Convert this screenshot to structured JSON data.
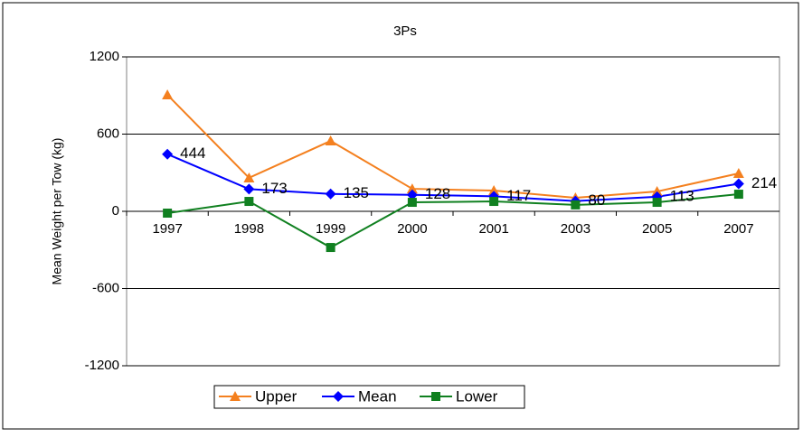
{
  "chart_data": {
    "type": "line",
    "title": "3Ps",
    "y_label": "Mean Weight per Tow (kg)",
    "categories": [
      "1997",
      "1998",
      "1999",
      "2000",
      "2001",
      "2003",
      "2005",
      "2007"
    ],
    "series": [
      {
        "name": "Upper",
        "color": "#f4801f",
        "marker": "triangle",
        "values": [
          905,
          260,
          547,
          175,
          161,
          105,
          154,
          295
        ]
      },
      {
        "name": "Mean",
        "color": "#0000ff",
        "marker": "diamond",
        "values": [
          444,
          173,
          135,
          128,
          117,
          80,
          113,
          214
        ],
        "show_labels": true
      },
      {
        "name": "Lower",
        "color": "#108020",
        "marker": "square",
        "values": [
          -14,
          77,
          -281,
          70,
          77,
          50,
          70,
          133
        ]
      }
    ],
    "ylim": [
      -1200,
      1200
    ],
    "yticks": [
      -1200,
      -600,
      0,
      600,
      1200
    ],
    "grid": true,
    "legend": "bottom"
  }
}
